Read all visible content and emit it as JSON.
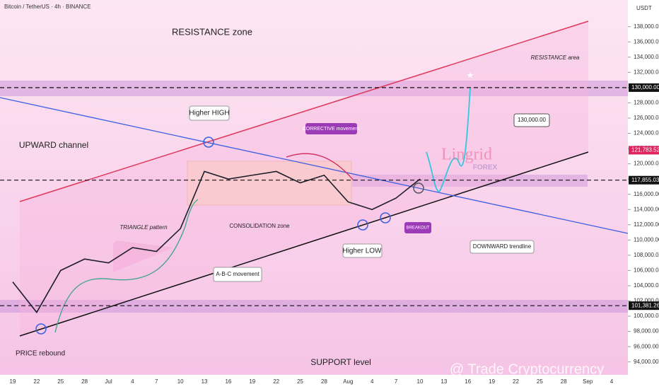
{
  "chart_data": {
    "type": "line",
    "title": "Bitcoin / TetherUS · 4h · BINANCE",
    "y_axis_label": "USDT",
    "categories": [
      "19",
      "22",
      "25",
      "28",
      "Jul",
      "4",
      "7",
      "10",
      "13",
      "16",
      "19",
      "22",
      "25",
      "28",
      "Aug",
      "4",
      "7",
      "10",
      "13",
      "16",
      "19",
      "22",
      "25",
      "28",
      "Sep",
      "4"
    ],
    "values": [
      104500,
      100500,
      106000,
      107500,
      107000,
      109000,
      108500,
      111500,
      119000,
      118000,
      118500,
      119000,
      117500,
      118500,
      115000,
      114000,
      115500,
      118000,
      null,
      null,
      null,
      null,
      null,
      null,
      null,
      null
    ],
    "color": "#1e1e2a",
    "ylim": [
      92300,
      141500
    ],
    "yticks": [
      {
        "value": 94000,
        "label": "94,000.00"
      },
      {
        "value": 96000,
        "label": "96,000.00"
      },
      {
        "value": 98000,
        "label": "98,000.00"
      },
      {
        "value": 100000,
        "label": "100,000.00"
      },
      {
        "value": 102000,
        "label": "102,000.00"
      },
      {
        "value": 104000,
        "label": "104,000.00"
      },
      {
        "value": 106000,
        "label": "106,000.00"
      },
      {
        "value": 108000,
        "label": "108,000.00"
      },
      {
        "value": 110000,
        "label": "110,000.00"
      },
      {
        "value": 112000,
        "label": "112,000.00"
      },
      {
        "value": 114000,
        "label": "114,000.00"
      },
      {
        "value": 116000,
        "label": "116,000.00"
      },
      {
        "value": 118000,
        "label": "118,000.00"
      },
      {
        "value": 120000,
        "label": "120,000.00"
      },
      {
        "value": 122000,
        "label": "122,000.00"
      },
      {
        "value": 124000,
        "label": "124,000.00"
      },
      {
        "value": 126000,
        "label": "126,000.00"
      },
      {
        "value": 128000,
        "label": "128,000.00"
      },
      {
        "value": 130000,
        "label": "130,000.00"
      },
      {
        "value": 132000,
        "label": "132,000.00"
      },
      {
        "value": 134000,
        "label": "134,000.00"
      },
      {
        "value": 136000,
        "label": "136,000.00"
      },
      {
        "value": 138000,
        "label": "138,000.00"
      }
    ],
    "price_levels": [
      {
        "value": 130000,
        "label": "130,000.00",
        "color": "#111111"
      },
      {
        "value": 121783.52,
        "label": "121,783.52",
        "color": "#e0245e"
      },
      {
        "value": 117855.03,
        "label": "117,855.03",
        "color": "#111111"
      },
      {
        "value": 101381.26,
        "label": "101,381.26",
        "color": "#111111"
      }
    ],
    "annotations": {
      "resistance_zone": "RESISTANCE zone",
      "resistance_area": "RESISTANCE area",
      "higher_high": "Higher HIGH",
      "upward_channel": "UPWARD channel",
      "corrective": "CORRECTIVE movement",
      "consolidation": "CONSOLIDATION zone",
      "triangle": "TRIANGLE pattern",
      "abc": "A-B-C movement",
      "higher_low": "Higher LOW",
      "breakout": "BREAKOUT",
      "downward": "DOWNWARD trendline",
      "target": "130,000.00",
      "price_rebound": "PRICE rebound",
      "support": "SUPPORT level",
      "brand": "Lingrid",
      "brand_sub": "FOREX",
      "watermark": "@ Trade Cryptocurrency"
    }
  }
}
